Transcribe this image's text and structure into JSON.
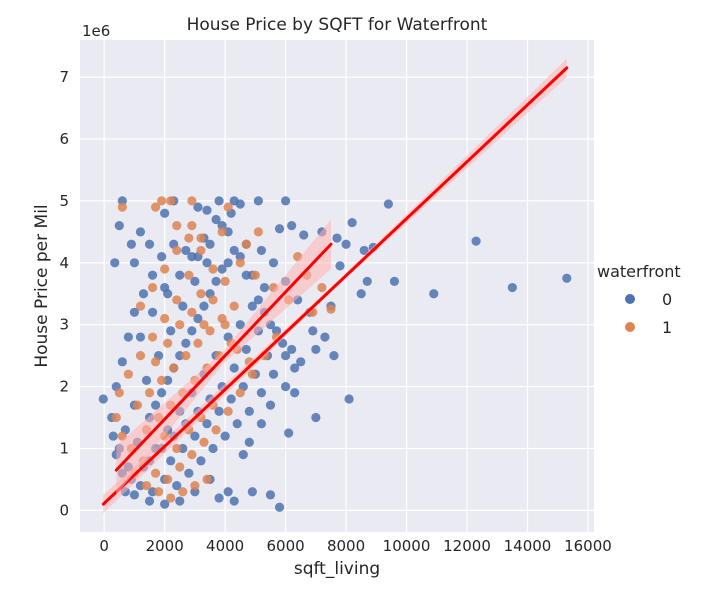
{
  "chart_data": {
    "type": "scatter",
    "title": "House Price by SQFT for Waterfront",
    "xlabel": "sqft_living",
    "ylabel": "House Price per Mil",
    "y_offset_label": "1e6",
    "xlim": [
      -800,
      16200
    ],
    "ylim": [
      -350000,
      7600000
    ],
    "x_ticks": [
      0,
      2000,
      4000,
      6000,
      8000,
      10000,
      12000,
      14000,
      16000
    ],
    "x_tick_labels": [
      "0",
      "2000",
      "4000",
      "6000",
      "8000",
      "10000",
      "12000",
      "14000",
      "16000"
    ],
    "y_ticks": [
      0,
      1000000,
      2000000,
      3000000,
      4000000,
      5000000,
      6000000,
      7000000
    ],
    "y_tick_labels": [
      "0",
      "1",
      "2",
      "3",
      "4",
      "5",
      "6",
      "7"
    ],
    "grid": true,
    "legend": {
      "title": "waterfront",
      "placement": "right",
      "entries": [
        "0",
        "1"
      ]
    },
    "colors": {
      "background": "#eaeaf2",
      "grid": "#ffffff",
      "series_0": "#4c72b0",
      "series_1": "#dd8452",
      "regression": "#ff0000",
      "ci_band": "#ffb3b3"
    },
    "series": [
      {
        "name": "0",
        "points": [
          [
            -30,
            1800000
          ],
          [
            350,
            4000000
          ],
          [
            500,
            4600000
          ],
          [
            600,
            5000000
          ],
          [
            900,
            4300000
          ],
          [
            1000,
            4000000
          ],
          [
            1200,
            4500000
          ],
          [
            1500,
            4300000
          ],
          [
            2000,
            4800000
          ],
          [
            2300,
            5000000
          ],
          [
            3100,
            4900000
          ],
          [
            3400,
            4850000
          ],
          [
            3800,
            5000000
          ],
          [
            4300,
            5000000
          ],
          [
            4500,
            4950000
          ],
          [
            5100,
            5000000
          ],
          [
            5800,
            4550000
          ],
          [
            6000,
            5000000
          ],
          [
            6200,
            4600000
          ],
          [
            6600,
            4450000
          ],
          [
            7200,
            4500000
          ],
          [
            7700,
            4400000
          ],
          [
            8000,
            4300000
          ],
          [
            8200,
            4650000
          ],
          [
            8600,
            4200000
          ],
          [
            8900,
            4250000
          ],
          [
            9400,
            4950000
          ],
          [
            12300,
            4350000
          ],
          [
            15300,
            3750000
          ],
          [
            13500,
            3600000
          ],
          [
            10900,
            3500000
          ],
          [
            9600,
            3700000
          ],
          [
            8500,
            3500000
          ],
          [
            8700,
            3700000
          ],
          [
            7500,
            3300000
          ],
          [
            7800,
            3950000
          ],
          [
            6900,
            2900000
          ],
          [
            7300,
            2800000
          ],
          [
            7600,
            2500000
          ],
          [
            7000,
            2600000
          ],
          [
            6200,
            2600000
          ],
          [
            6500,
            2400000
          ],
          [
            8100,
            1800000
          ],
          [
            7000,
            1500000
          ],
          [
            6100,
            1250000
          ],
          [
            6300,
            1900000
          ],
          [
            6000,
            2000000
          ],
          [
            5500,
            1700000
          ],
          [
            5200,
            1400000
          ],
          [
            4800,
            1100000
          ],
          [
            4600,
            900000
          ],
          [
            5500,
            250000
          ],
          [
            5800,
            50000
          ],
          [
            4900,
            300000
          ],
          [
            4300,
            150000
          ],
          [
            4100,
            300000
          ],
          [
            3800,
            200000
          ],
          [
            3500,
            500000
          ],
          [
            3000,
            300000
          ],
          [
            2500,
            150000
          ],
          [
            2000,
            100000
          ],
          [
            1500,
            150000
          ],
          [
            1000,
            250000
          ],
          [
            700,
            300000
          ],
          [
            600,
            600000
          ],
          [
            400,
            900000
          ],
          [
            300,
            1200000
          ],
          [
            250,
            1500000
          ],
          [
            400,
            2000000
          ],
          [
            600,
            2400000
          ],
          [
            800,
            2800000
          ],
          [
            1000,
            3200000
          ],
          [
            1300,
            3500000
          ],
          [
            1600,
            3800000
          ],
          [
            1900,
            4100000
          ],
          [
            2300,
            4300000
          ],
          [
            2700,
            4200000
          ],
          [
            3100,
            4100000
          ],
          [
            3500,
            4300000
          ],
          [
            3900,
            4600000
          ],
          [
            4200,
            4800000
          ],
          [
            4700,
            4300000
          ],
          [
            5200,
            4200000
          ],
          [
            5600,
            4000000
          ],
          [
            6000,
            3700000
          ],
          [
            6400,
            3400000
          ],
          [
            6800,
            3200000
          ],
          [
            5300,
            3600000
          ],
          [
            4900,
            3300000
          ],
          [
            4500,
            3000000
          ],
          [
            4100,
            2800000
          ],
          [
            3700,
            2500000
          ],
          [
            3300,
            2200000
          ],
          [
            2900,
            1900000
          ],
          [
            2500,
            1600000
          ],
          [
            2100,
            1300000
          ],
          [
            1700,
            1000000
          ],
          [
            1300,
            700000
          ],
          [
            900,
            500000
          ],
          [
            1100,
            1100000
          ],
          [
            1500,
            1500000
          ],
          [
            1900,
            1900000
          ],
          [
            2300,
            2300000
          ],
          [
            2700,
            2700000
          ],
          [
            3100,
            3100000
          ],
          [
            3500,
            3500000
          ],
          [
            3900,
            3900000
          ],
          [
            4300,
            4200000
          ],
          [
            4700,
            3800000
          ],
          [
            5100,
            3400000
          ],
          [
            5500,
            3000000
          ],
          [
            5900,
            2700000
          ],
          [
            6300,
            2300000
          ],
          [
            2200,
            800000
          ],
          [
            2600,
            1000000
          ],
          [
            3000,
            1200000
          ],
          [
            3400,
            1400000
          ],
          [
            3800,
            1600000
          ],
          [
            4200,
            1800000
          ],
          [
            4600,
            2000000
          ],
          [
            5000,
            2200000
          ],
          [
            5400,
            2500000
          ],
          [
            1800,
            2500000
          ],
          [
            2200,
            2900000
          ],
          [
            2600,
            3300000
          ],
          [
            3000,
            3700000
          ],
          [
            3400,
            4000000
          ],
          [
            1400,
            2100000
          ],
          [
            1000,
            1700000
          ],
          [
            700,
            1300000
          ],
          [
            500,
            1000000
          ],
          [
            800,
            700000
          ],
          [
            1200,
            400000
          ],
          [
            1600,
            300000
          ],
          [
            2000,
            500000
          ],
          [
            2400,
            400000
          ],
          [
            2800,
            600000
          ],
          [
            3200,
            800000
          ],
          [
            3600,
            1000000
          ],
          [
            4000,
            1200000
          ],
          [
            4400,
            1400000
          ],
          [
            4800,
            1600000
          ],
          [
            5200,
            1900000
          ],
          [
            5600,
            2200000
          ],
          [
            6000,
            2500000
          ],
          [
            2100,
            3500000
          ],
          [
            2500,
            3800000
          ],
          [
            2900,
            4100000
          ],
          [
            3300,
            4400000
          ],
          [
            3700,
            4700000
          ],
          [
            4100,
            4500000
          ],
          [
            4500,
            4100000
          ],
          [
            4900,
            3800000
          ],
          [
            5300,
            3200000
          ],
          [
            5700,
            2900000
          ],
          [
            1700,
            1700000
          ],
          [
            2100,
            2100000
          ],
          [
            2500,
            2500000
          ],
          [
            2900,
            2900000
          ],
          [
            3300,
            3300000
          ],
          [
            3700,
            3700000
          ],
          [
            4100,
            4000000
          ],
          [
            1500,
            800000
          ],
          [
            1900,
            1000000
          ],
          [
            2300,
            1200000
          ],
          [
            2700,
            1400000
          ],
          [
            3100,
            1600000
          ],
          [
            3500,
            1800000
          ],
          [
            3900,
            2000000
          ],
          [
            4300,
            2300000
          ],
          [
            4700,
            2600000
          ],
          [
            5100,
            2900000
          ],
          [
            1200,
            2800000
          ],
          [
            1600,
            3200000
          ],
          [
            2000,
            3600000
          ]
        ]
      },
      {
        "name": "1",
        "points": [
          [
            600,
            4900000
          ],
          [
            1700,
            4900000
          ],
          [
            1900,
            5000000
          ],
          [
            2200,
            5000000
          ],
          [
            2900,
            5000000
          ],
          [
            2400,
            4600000
          ],
          [
            2900,
            4600000
          ],
          [
            3200,
            4400000
          ],
          [
            3900,
            4500000
          ],
          [
            4100,
            4900000
          ],
          [
            4700,
            4300000
          ],
          [
            5100,
            4500000
          ],
          [
            6400,
            4100000
          ],
          [
            6700,
            3800000
          ],
          [
            7200,
            3600000
          ],
          [
            7500,
            3250000
          ],
          [
            6900,
            3200000
          ],
          [
            6100,
            3400000
          ],
          [
            5600,
            3600000
          ],
          [
            5000,
            3800000
          ],
          [
            4500,
            4000000
          ],
          [
            4000,
            3700000
          ],
          [
            3600,
            3900000
          ],
          [
            3200,
            3500000
          ],
          [
            2800,
            3800000
          ],
          [
            2400,
            3400000
          ],
          [
            2000,
            3100000
          ],
          [
            1600,
            2800000
          ],
          [
            1200,
            2500000
          ],
          [
            800,
            2200000
          ],
          [
            500,
            1900000
          ],
          [
            400,
            1500000
          ],
          [
            600,
            1200000
          ],
          [
            900,
            1000000
          ],
          [
            1300,
            800000
          ],
          [
            1700,
            600000
          ],
          [
            2100,
            500000
          ],
          [
            2500,
            700000
          ],
          [
            2900,
            900000
          ],
          [
            3300,
            1100000
          ],
          [
            3700,
            1300000
          ],
          [
            4100,
            1600000
          ],
          [
            4500,
            1900000
          ],
          [
            4900,
            2200000
          ],
          [
            5300,
            2500000
          ],
          [
            5700,
            2800000
          ],
          [
            1100,
            1700000
          ],
          [
            1500,
            1900000
          ],
          [
            1900,
            2100000
          ],
          [
            2300,
            2300000
          ],
          [
            2700,
            2500000
          ],
          [
            3100,
            2700000
          ],
          [
            3500,
            2900000
          ],
          [
            3900,
            3100000
          ],
          [
            4300,
            3300000
          ],
          [
            1400,
            1300000
          ],
          [
            1800,
            1500000
          ],
          [
            2200,
            1700000
          ],
          [
            2600,
            1900000
          ],
          [
            3000,
            2100000
          ],
          [
            3400,
            2300000
          ],
          [
            3800,
            2500000
          ],
          [
            4200,
            2700000
          ],
          [
            1000,
            600000
          ],
          [
            1400,
            400000
          ],
          [
            1800,
            300000
          ],
          [
            2200,
            200000
          ],
          [
            2600,
            300000
          ],
          [
            3000,
            400000
          ],
          [
            3400,
            500000
          ],
          [
            2000,
            1200000
          ],
          [
            2400,
            1000000
          ],
          [
            2800,
            1300000
          ],
          [
            3200,
            1500000
          ],
          [
            3600,
            1700000
          ],
          [
            1200,
            3300000
          ],
          [
            1600,
            3600000
          ],
          [
            2000,
            3900000
          ],
          [
            2400,
            4200000
          ],
          [
            2800,
            4400000
          ],
          [
            3200,
            4200000
          ],
          [
            3600,
            3400000
          ],
          [
            4000,
            3000000
          ],
          [
            4400,
            2600000
          ],
          [
            4800,
            2400000
          ],
          [
            2100,
            2700000
          ],
          [
            2500,
            3000000
          ],
          [
            2900,
            3200000
          ],
          [
            3300,
            3000000
          ],
          [
            1700,
            2400000
          ]
        ]
      }
    ],
    "regression": [
      {
        "series": "0",
        "x": [
          -30,
          15300
        ],
        "y": [
          100000,
          7150000
        ],
        "ci_halfwidth_end": 150000
      },
      {
        "series": "1",
        "x": [
          400,
          7500
        ],
        "y": [
          650000,
          4300000
        ],
        "ci_halfwidth_end": 400000
      }
    ]
  }
}
